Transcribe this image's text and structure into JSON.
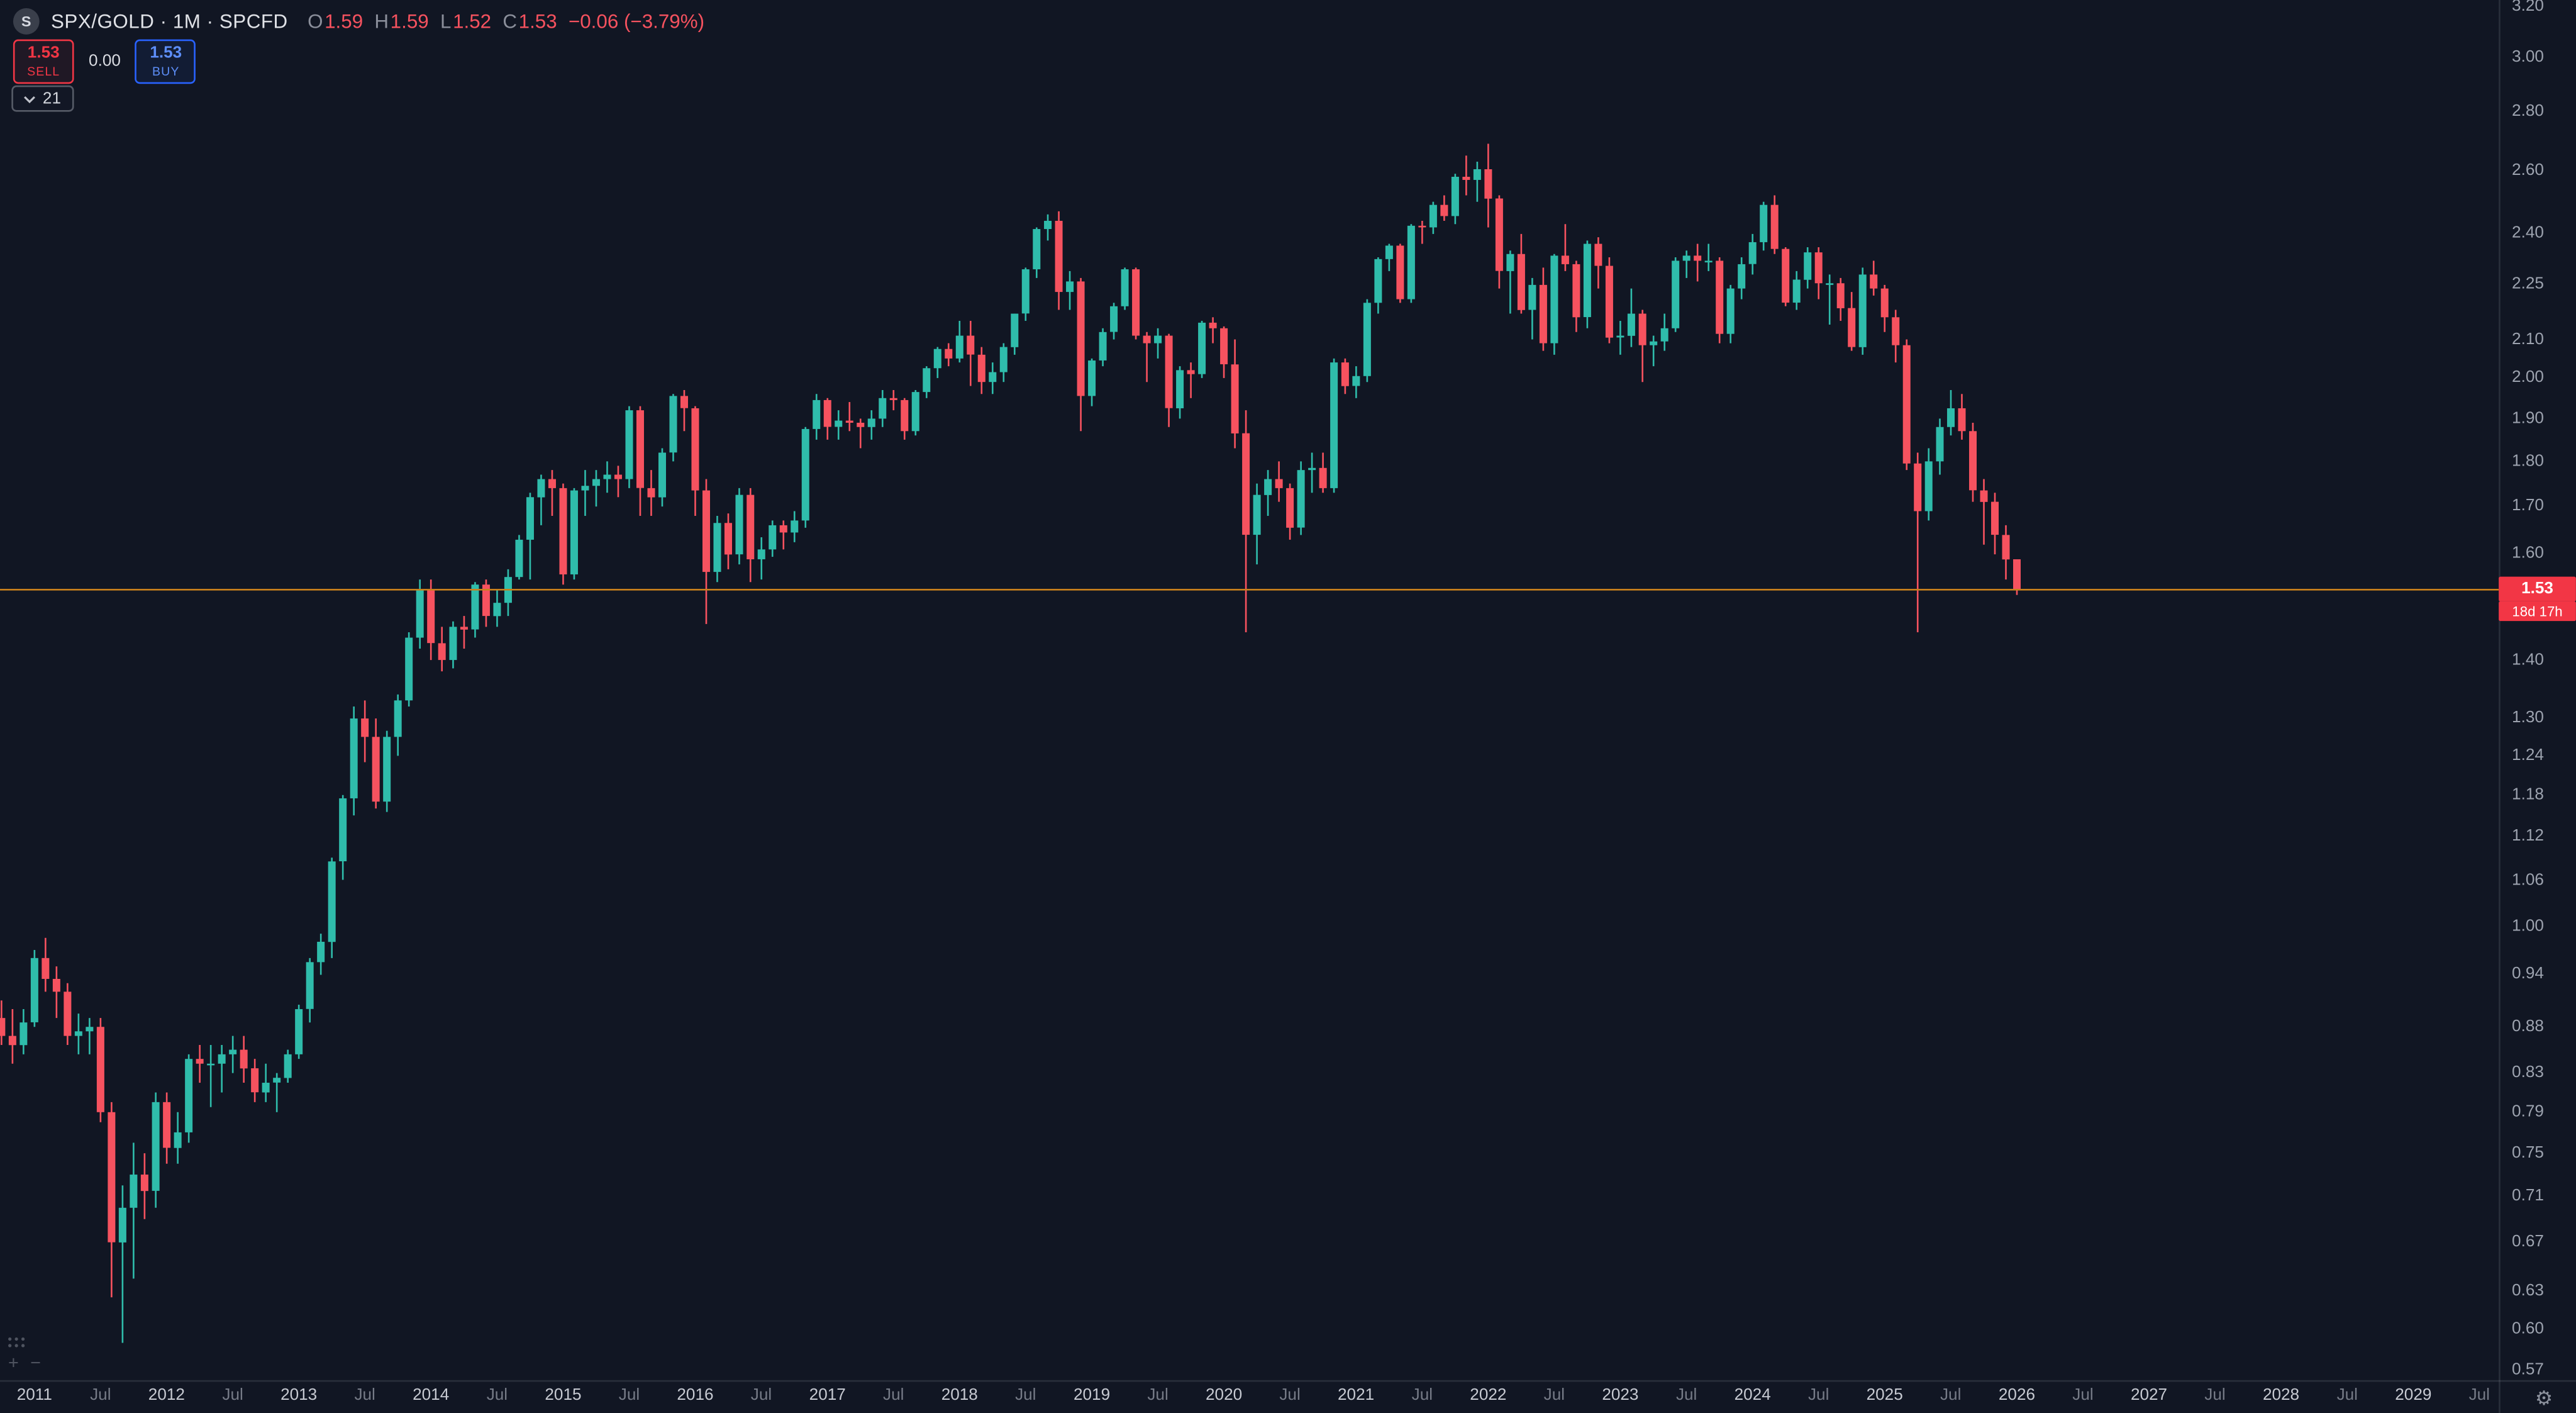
{
  "header": {
    "logo_letter": "S",
    "symbol_line": "SPX/GOLD · 1M · SPCFD",
    "ohlc": {
      "open_label": "O",
      "open": "1.59",
      "high_label": "H",
      "high": "1.59",
      "low_label": "L",
      "low": "1.52",
      "close_label": "C",
      "close": "1.53",
      "change": "−0.06 (−3.79%)"
    }
  },
  "trade_panel": {
    "sell_price": "1.53",
    "sell_label": "SELL",
    "spread": "0.00",
    "buy_price": "1.53",
    "buy_label": "BUY"
  },
  "indicators_chip": {
    "count": "21"
  },
  "price_scale": {
    "last_price": "1.53",
    "countdown": "18d 17h"
  },
  "icons": {
    "gear": "⚙",
    "zoom_in": "+",
    "zoom_out": "−"
  },
  "colors": {
    "background": "#111623",
    "up": "#2fbcab",
    "down": "#f6525f",
    "price_line": "#c9811c",
    "price_label_bg": "#f23645",
    "sell": "#f23645",
    "buy": "#2962ff",
    "axis_text": "#9da3af",
    "axis_text_dim": "#767b87"
  },
  "chart_data": {
    "type": "candlestick",
    "title": "SPX/GOLD monthly candlestick chart",
    "symbol": "SPX/GOLD",
    "interval": "1M",
    "exchange": "SPCFD",
    "start_month": "2010-10",
    "end_month": "2026-01",
    "ohlc_fields": [
      "open",
      "high",
      "low",
      "close"
    ],
    "price_line": {
      "value": 1.53
    },
    "y_axis": {
      "scale": "log",
      "ylim": [
        0.555,
        3.22
      ],
      "ticks": [
        3.2,
        3.0,
        2.8,
        2.6,
        2.4,
        2.25,
        2.1,
        2.0,
        1.9,
        1.8,
        1.7,
        1.6,
        1.4,
        1.3,
        1.24,
        1.18,
        1.12,
        1.06,
        1.0,
        0.94,
        0.88,
        0.83,
        0.79,
        0.75,
        0.71,
        0.67,
        0.63,
        0.6,
        0.57
      ]
    },
    "x_axis": {
      "tick_labels": [
        "2011",
        "Jul",
        "2012",
        "Jul",
        "2013",
        "Jul",
        "2014",
        "Jul",
        "2015",
        "Jul",
        "2016",
        "Jul",
        "2017",
        "Jul",
        "2018",
        "Jul",
        "2019",
        "Jul",
        "2020",
        "Jul",
        "2021",
        "Jul",
        "2022",
        "Jul",
        "2023",
        "Jul",
        "2024",
        "Jul",
        "2025",
        "Jul",
        "2026",
        "Jul",
        "2027",
        "Jul",
        "2028",
        "Jul",
        "2029",
        "Jul"
      ]
    },
    "grid": false,
    "legend": false,
    "candles": [
      [
        0.89,
        0.91,
        0.86,
        0.87
      ],
      [
        0.87,
        0.9,
        0.84,
        0.86
      ],
      [
        0.86,
        0.9,
        0.85,
        0.885
      ],
      [
        0.885,
        0.97,
        0.88,
        0.96
      ],
      [
        0.96,
        0.985,
        0.92,
        0.935
      ],
      [
        0.935,
        0.95,
        0.89,
        0.92
      ],
      [
        0.92,
        0.93,
        0.86,
        0.87
      ],
      [
        0.87,
        0.895,
        0.85,
        0.875
      ],
      [
        0.875,
        0.89,
        0.85,
        0.88
      ],
      [
        0.88,
        0.89,
        0.78,
        0.79
      ],
      [
        0.79,
        0.8,
        0.625,
        0.67
      ],
      [
        0.67,
        0.72,
        0.59,
        0.7
      ],
      [
        0.7,
        0.76,
        0.64,
        0.73
      ],
      [
        0.73,
        0.75,
        0.69,
        0.715
      ],
      [
        0.715,
        0.81,
        0.7,
        0.8
      ],
      [
        0.8,
        0.81,
        0.74,
        0.755
      ],
      [
        0.755,
        0.79,
        0.74,
        0.77
      ],
      [
        0.77,
        0.85,
        0.76,
        0.845
      ],
      [
        0.845,
        0.86,
        0.82,
        0.84
      ],
      [
        0.84,
        0.86,
        0.795,
        0.84
      ],
      [
        0.84,
        0.86,
        0.81,
        0.85
      ],
      [
        0.85,
        0.87,
        0.83,
        0.855
      ],
      [
        0.855,
        0.87,
        0.82,
        0.835
      ],
      [
        0.835,
        0.845,
        0.8,
        0.81
      ],
      [
        0.81,
        0.84,
        0.8,
        0.82
      ],
      [
        0.82,
        0.83,
        0.79,
        0.825
      ],
      [
        0.825,
        0.855,
        0.82,
        0.85
      ],
      [
        0.85,
        0.905,
        0.845,
        0.9
      ],
      [
        0.9,
        0.96,
        0.885,
        0.955
      ],
      [
        0.955,
        0.99,
        0.94,
        0.98
      ],
      [
        0.98,
        1.09,
        0.96,
        1.085
      ],
      [
        1.085,
        1.18,
        1.06,
        1.175
      ],
      [
        1.175,
        1.32,
        1.15,
        1.3
      ],
      [
        1.3,
        1.33,
        1.23,
        1.27
      ],
      [
        1.27,
        1.3,
        1.16,
        1.17
      ],
      [
        1.17,
        1.28,
        1.155,
        1.27
      ],
      [
        1.27,
        1.34,
        1.24,
        1.33
      ],
      [
        1.33,
        1.45,
        1.32,
        1.44
      ],
      [
        1.44,
        1.55,
        1.42,
        1.53
      ],
      [
        1.53,
        1.55,
        1.4,
        1.43
      ],
      [
        1.43,
        1.46,
        1.38,
        1.4
      ],
      [
        1.4,
        1.47,
        1.385,
        1.46
      ],
      [
        1.46,
        1.48,
        1.42,
        1.455
      ],
      [
        1.455,
        1.545,
        1.44,
        1.54
      ],
      [
        1.54,
        1.55,
        1.46,
        1.48
      ],
      [
        1.48,
        1.53,
        1.46,
        1.505
      ],
      [
        1.505,
        1.57,
        1.48,
        1.555
      ],
      [
        1.555,
        1.64,
        1.55,
        1.63
      ],
      [
        1.63,
        1.73,
        1.55,
        1.72
      ],
      [
        1.72,
        1.77,
        1.66,
        1.76
      ],
      [
        1.76,
        1.78,
        1.68,
        1.74
      ],
      [
        1.74,
        1.75,
        1.54,
        1.56
      ],
      [
        1.56,
        1.74,
        1.55,
        1.735
      ],
      [
        1.735,
        1.78,
        1.68,
        1.745
      ],
      [
        1.745,
        1.78,
        1.7,
        1.76
      ],
      [
        1.76,
        1.8,
        1.73,
        1.77
      ],
      [
        1.77,
        1.79,
        1.72,
        1.76
      ],
      [
        1.76,
        1.93,
        1.74,
        1.92
      ],
      [
        1.92,
        1.93,
        1.68,
        1.74
      ],
      [
        1.74,
        1.78,
        1.68,
        1.72
      ],
      [
        1.72,
        1.83,
        1.7,
        1.82
      ],
      [
        1.82,
        1.96,
        1.8,
        1.955
      ],
      [
        1.955,
        1.97,
        1.87,
        1.925
      ],
      [
        1.925,
        1.93,
        1.68,
        1.735
      ],
      [
        1.735,
        1.76,
        1.465,
        1.565
      ],
      [
        1.565,
        1.68,
        1.545,
        1.665
      ],
      [
        1.665,
        1.685,
        1.57,
        1.6
      ],
      [
        1.6,
        1.74,
        1.58,
        1.725
      ],
      [
        1.725,
        1.74,
        1.545,
        1.59
      ],
      [
        1.59,
        1.635,
        1.55,
        1.61
      ],
      [
        1.61,
        1.67,
        1.595,
        1.66
      ],
      [
        1.66,
        1.67,
        1.61,
        1.645
      ],
      [
        1.645,
        1.69,
        1.625,
        1.67
      ],
      [
        1.67,
        1.88,
        1.655,
        1.875
      ],
      [
        1.875,
        1.96,
        1.85,
        1.945
      ],
      [
        1.945,
        1.95,
        1.85,
        1.88
      ],
      [
        1.88,
        1.92,
        1.85,
        1.895
      ],
      [
        1.895,
        1.94,
        1.87,
        1.89
      ],
      [
        1.89,
        1.9,
        1.83,
        1.88
      ],
      [
        1.88,
        1.92,
        1.85,
        1.9
      ],
      [
        1.9,
        1.97,
        1.88,
        1.95
      ],
      [
        1.95,
        1.97,
        1.92,
        1.945
      ],
      [
        1.945,
        1.95,
        1.85,
        1.87
      ],
      [
        1.87,
        1.97,
        1.86,
        1.965
      ],
      [
        1.965,
        2.03,
        1.95,
        2.025
      ],
      [
        2.025,
        2.08,
        2.0,
        2.075
      ],
      [
        2.075,
        2.09,
        2.03,
        2.05
      ],
      [
        2.05,
        2.15,
        2.04,
        2.11
      ],
      [
        2.11,
        2.15,
        1.98,
        2.06
      ],
      [
        2.06,
        2.08,
        1.96,
        1.99
      ],
      [
        1.99,
        2.04,
        1.96,
        2.015
      ],
      [
        2.015,
        2.09,
        1.99,
        2.08
      ],
      [
        2.08,
        2.17,
        2.06,
        2.17
      ],
      [
        2.17,
        2.3,
        2.15,
        2.295
      ],
      [
        2.295,
        2.42,
        2.27,
        2.415
      ],
      [
        2.415,
        2.46,
        2.38,
        2.44
      ],
      [
        2.44,
        2.47,
        2.18,
        2.23
      ],
      [
        2.23,
        2.29,
        2.18,
        2.26
      ],
      [
        2.26,
        2.27,
        1.87,
        1.955
      ],
      [
        1.955,
        2.05,
        1.93,
        2.045
      ],
      [
        2.045,
        2.13,
        2.03,
        2.12
      ],
      [
        2.12,
        2.2,
        2.1,
        2.19
      ],
      [
        2.19,
        2.3,
        2.18,
        2.295
      ],
      [
        2.295,
        2.3,
        2.1,
        2.11
      ],
      [
        2.11,
        2.12,
        1.99,
        2.09
      ],
      [
        2.09,
        2.13,
        2.05,
        2.11
      ],
      [
        2.11,
        2.115,
        1.88,
        1.925
      ],
      [
        1.925,
        2.03,
        1.9,
        2.02
      ],
      [
        2.02,
        2.04,
        1.95,
        2.01
      ],
      [
        2.01,
        2.15,
        2.0,
        2.145
      ],
      [
        2.145,
        2.16,
        2.09,
        2.13
      ],
      [
        2.13,
        2.135,
        2.0,
        2.035
      ],
      [
        2.035,
        2.1,
        1.83,
        1.865
      ],
      [
        1.865,
        1.92,
        1.45,
        1.64
      ],
      [
        1.64,
        1.75,
        1.58,
        1.725
      ],
      [
        1.725,
        1.78,
        1.68,
        1.76
      ],
      [
        1.76,
        1.8,
        1.71,
        1.74
      ],
      [
        1.74,
        1.75,
        1.63,
        1.655
      ],
      [
        1.655,
        1.8,
        1.64,
        1.78
      ],
      [
        1.78,
        1.82,
        1.73,
        1.785
      ],
      [
        1.785,
        1.82,
        1.73,
        1.74
      ],
      [
        1.74,
        2.05,
        1.73,
        2.04
      ],
      [
        2.04,
        2.05,
        1.96,
        1.98
      ],
      [
        1.98,
        2.03,
        1.95,
        2.005
      ],
      [
        2.005,
        2.21,
        1.99,
        2.2
      ],
      [
        2.2,
        2.33,
        2.17,
        2.325
      ],
      [
        2.325,
        2.37,
        2.29,
        2.365
      ],
      [
        2.365,
        2.37,
        2.2,
        2.21
      ],
      [
        2.21,
        2.43,
        2.2,
        2.425
      ],
      [
        2.425,
        2.44,
        2.37,
        2.42
      ],
      [
        2.42,
        2.5,
        2.4,
        2.49
      ],
      [
        2.49,
        2.52,
        2.44,
        2.455
      ],
      [
        2.455,
        2.59,
        2.43,
        2.58
      ],
      [
        2.58,
        2.65,
        2.52,
        2.57
      ],
      [
        2.57,
        2.63,
        2.5,
        2.605
      ],
      [
        2.605,
        2.69,
        2.42,
        2.51
      ],
      [
        2.51,
        2.52,
        2.24,
        2.29
      ],
      [
        2.29,
        2.35,
        2.17,
        2.34
      ],
      [
        2.34,
        2.4,
        2.17,
        2.18
      ],
      [
        2.18,
        2.27,
        2.1,
        2.25
      ],
      [
        2.25,
        2.3,
        2.07,
        2.09
      ],
      [
        2.09,
        2.34,
        2.06,
        2.335
      ],
      [
        2.335,
        2.43,
        2.29,
        2.31
      ],
      [
        2.31,
        2.32,
        2.12,
        2.16
      ],
      [
        2.16,
        2.38,
        2.13,
        2.37
      ],
      [
        2.37,
        2.39,
        2.24,
        2.305
      ],
      [
        2.305,
        2.33,
        2.09,
        2.105
      ],
      [
        2.105,
        2.15,
        2.06,
        2.11
      ],
      [
        2.11,
        2.24,
        2.08,
        2.17
      ],
      [
        2.17,
        2.18,
        1.99,
        2.085
      ],
      [
        2.085,
        2.11,
        2.03,
        2.095
      ],
      [
        2.095,
        2.17,
        2.07,
        2.13
      ],
      [
        2.13,
        2.33,
        2.12,
        2.32
      ],
      [
        2.32,
        2.35,
        2.27,
        2.335
      ],
      [
        2.335,
        2.37,
        2.26,
        2.32
      ],
      [
        2.32,
        2.37,
        2.29,
        2.32
      ],
      [
        2.32,
        2.33,
        2.09,
        2.115
      ],
      [
        2.115,
        2.25,
        2.09,
        2.24
      ],
      [
        2.24,
        2.33,
        2.21,
        2.31
      ],
      [
        2.31,
        2.4,
        2.28,
        2.375
      ],
      [
        2.375,
        2.5,
        2.35,
        2.49
      ],
      [
        2.49,
        2.52,
        2.34,
        2.355
      ],
      [
        2.355,
        2.36,
        2.19,
        2.2
      ],
      [
        2.2,
        2.29,
        2.18,
        2.265
      ],
      [
        2.265,
        2.36,
        2.24,
        2.345
      ],
      [
        2.345,
        2.36,
        2.21,
        2.255
      ],
      [
        2.255,
        2.28,
        2.14,
        2.255
      ],
      [
        2.255,
        2.27,
        2.15,
        2.185
      ],
      [
        2.185,
        2.23,
        2.07,
        2.08
      ],
      [
        2.08,
        2.3,
        2.06,
        2.28
      ],
      [
        2.28,
        2.32,
        2.22,
        2.24
      ],
      [
        2.24,
        2.25,
        2.12,
        2.16
      ],
      [
        2.16,
        2.18,
        2.04,
        2.085
      ],
      [
        2.085,
        2.1,
        1.78,
        1.795
      ],
      [
        1.795,
        1.82,
        1.45,
        1.69
      ],
      [
        1.69,
        1.83,
        1.67,
        1.8
      ],
      [
        1.8,
        1.9,
        1.77,
        1.88
      ],
      [
        1.88,
        1.97,
        1.86,
        1.925
      ],
      [
        1.925,
        1.96,
        1.85,
        1.87
      ],
      [
        1.87,
        1.89,
        1.71,
        1.735
      ],
      [
        1.735,
        1.76,
        1.62,
        1.71
      ],
      [
        1.71,
        1.73,
        1.6,
        1.64
      ],
      [
        1.64,
        1.66,
        1.55,
        1.59
      ],
      [
        1.59,
        1.59,
        1.52,
        1.53
      ]
    ]
  }
}
